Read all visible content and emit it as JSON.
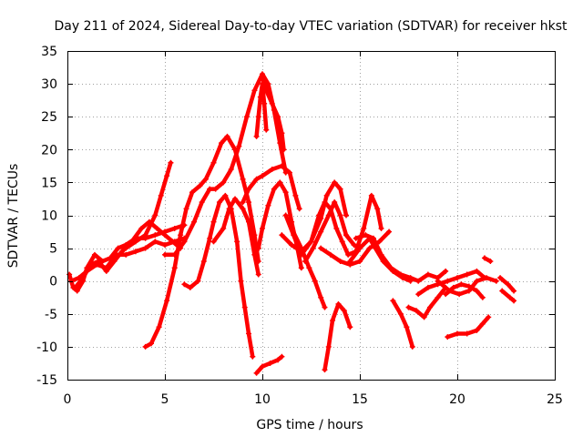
{
  "chart_data": {
    "type": "scatter",
    "title": "Day 211 of 2024, Sidereal Day-to-day VTEC variation (SDTVAR) for receiver hkst",
    "xlabel": "GPS time / hours",
    "ylabel": "SDTVAR / TECUs",
    "xlim": [
      0,
      25
    ],
    "ylim": [
      -15,
      35
    ],
    "xticks": [
      0,
      5,
      10,
      15,
      20,
      25
    ],
    "yticks": [
      -15,
      -10,
      -5,
      0,
      5,
      10,
      15,
      20,
      25,
      30,
      35
    ],
    "grid": true,
    "marker": "+",
    "color": "#ff0000",
    "series": [
      {
        "name": "trace-01",
        "points": [
          [
            0.1,
            1
          ],
          [
            0.3,
            -1
          ],
          [
            0.5,
            -1.5
          ],
          [
            0.8,
            0
          ],
          [
            1.0,
            2
          ],
          [
            1.4,
            4
          ],
          [
            1.8,
            3
          ],
          [
            2.2,
            3.5
          ],
          [
            2.6,
            5
          ],
          [
            3.0,
            5.5
          ],
          [
            3.5,
            6.5
          ],
          [
            4.0,
            6.5
          ],
          [
            4.5,
            7
          ],
          [
            5.0,
            7.5
          ],
          [
            5.5,
            8
          ],
          [
            6.0,
            8.5
          ]
        ]
      },
      {
        "name": "trace-02",
        "points": [
          [
            0.2,
            0
          ],
          [
            0.6,
            0.5
          ],
          [
            1.0,
            1.5
          ],
          [
            1.5,
            2.5
          ],
          [
            2.0,
            2
          ],
          [
            2.5,
            4
          ],
          [
            3.0,
            4
          ],
          [
            3.5,
            4.5
          ],
          [
            4.0,
            5
          ],
          [
            4.5,
            6
          ],
          [
            5.0,
            5.5
          ],
          [
            5.5,
            6
          ],
          [
            6.0,
            6.5
          ]
        ]
      },
      {
        "name": "trace-03",
        "points": [
          [
            0.4,
            -1
          ],
          [
            0.8,
            0.5
          ],
          [
            1.2,
            2.5
          ],
          [
            1.6,
            3
          ],
          [
            2.0,
            1.5
          ],
          [
            2.4,
            3
          ],
          [
            2.8,
            4.5
          ],
          [
            3.3,
            6
          ],
          [
            3.8,
            8
          ],
          [
            4.2,
            9
          ],
          [
            4.6,
            8
          ],
          [
            5.0,
            7
          ],
          [
            5.4,
            6
          ],
          [
            5.8,
            5
          ]
        ]
      },
      {
        "name": "trace-04",
        "points": [
          [
            3.0,
            5
          ],
          [
            3.5,
            6
          ],
          [
            4.0,
            7
          ],
          [
            4.5,
            10
          ],
          [
            4.8,
            13
          ],
          [
            5.1,
            16
          ],
          [
            5.3,
            18
          ]
        ]
      },
      {
        "name": "trace-05",
        "points": [
          [
            4.0,
            -10
          ],
          [
            4.3,
            -9.5
          ],
          [
            4.7,
            -7
          ],
          [
            5.1,
            -3
          ],
          [
            5.5,
            2
          ],
          [
            5.8,
            7
          ],
          [
            6.1,
            11
          ],
          [
            6.4,
            13.5
          ],
          [
            6.8,
            14.5
          ],
          [
            7.1,
            15.5
          ],
          [
            7.5,
            18
          ],
          [
            7.9,
            21
          ],
          [
            8.2,
            22
          ],
          [
            8.6,
            20
          ],
          [
            9.0,
            15.5
          ],
          [
            9.3,
            12
          ],
          [
            9.6,
            7
          ],
          [
            9.8,
            3
          ]
        ]
      },
      {
        "name": "trace-06",
        "points": [
          [
            6.0,
            -0.5
          ],
          [
            6.3,
            -1
          ],
          [
            6.7,
            0
          ],
          [
            7.0,
            3
          ],
          [
            7.3,
            6.5
          ],
          [
            7.5,
            9
          ],
          [
            7.8,
            12
          ],
          [
            8.1,
            13
          ],
          [
            8.4,
            11
          ],
          [
            8.7,
            6
          ],
          [
            8.9,
            0
          ],
          [
            9.1,
            -4
          ],
          [
            9.3,
            -8
          ],
          [
            9.5,
            -11.5
          ]
        ]
      },
      {
        "name": "trace-07",
        "points": [
          [
            5.0,
            4
          ],
          [
            5.5,
            4
          ],
          [
            6.0,
            6
          ],
          [
            6.5,
            9
          ],
          [
            6.9,
            12
          ],
          [
            7.3,
            14
          ],
          [
            7.6,
            14
          ],
          [
            8.0,
            15
          ],
          [
            8.4,
            17
          ],
          [
            8.8,
            20.5
          ],
          [
            9.2,
            25
          ],
          [
            9.6,
            29
          ],
          [
            10.0,
            31.5
          ],
          [
            10.3,
            30
          ],
          [
            10.6,
            26
          ],
          [
            10.9,
            21
          ],
          [
            11.2,
            16.5
          ]
        ]
      },
      {
        "name": "trace-08",
        "points": [
          [
            9.7,
            22
          ],
          [
            9.8,
            25
          ],
          [
            9.9,
            28
          ],
          [
            10.0,
            30
          ],
          [
            10.1,
            27
          ],
          [
            10.2,
            23
          ]
        ]
      },
      {
        "name": "trace-09",
        "points": [
          [
            10.0,
            31
          ],
          [
            10.2,
            29
          ],
          [
            10.5,
            27
          ],
          [
            10.8,
            25
          ],
          [
            11.0,
            22.5
          ],
          [
            11.1,
            20
          ]
        ]
      },
      {
        "name": "trace-10",
        "points": [
          [
            9.0,
            12
          ],
          [
            9.3,
            14
          ],
          [
            9.7,
            15.5
          ],
          [
            10.0,
            16
          ],
          [
            10.5,
            17
          ],
          [
            11.0,
            17.5
          ],
          [
            11.4,
            16.5
          ],
          [
            11.7,
            13
          ],
          [
            11.9,
            11
          ]
        ]
      },
      {
        "name": "trace-11",
        "points": [
          [
            7.5,
            6
          ],
          [
            8.0,
            8
          ],
          [
            8.3,
            11
          ],
          [
            8.6,
            12.5
          ],
          [
            9.0,
            11
          ],
          [
            9.3,
            9
          ],
          [
            9.6,
            4
          ],
          [
            9.8,
            1
          ]
        ]
      },
      {
        "name": "trace-12",
        "points": [
          [
            9.6,
            4
          ],
          [
            9.8,
            5
          ],
          [
            10.0,
            8
          ],
          [
            10.3,
            11.5
          ],
          [
            10.6,
            14
          ],
          [
            10.9,
            15
          ],
          [
            11.2,
            13.5
          ],
          [
            11.5,
            9
          ],
          [
            11.8,
            5
          ],
          [
            12.0,
            2
          ]
        ]
      },
      {
        "name": "trace-13",
        "points": [
          [
            9.7,
            -14
          ],
          [
            10.0,
            -13
          ],
          [
            10.4,
            -12.5
          ],
          [
            10.8,
            -12
          ],
          [
            11.0,
            -11.5
          ]
        ]
      },
      {
        "name": "trace-14",
        "points": [
          [
            11.0,
            7
          ],
          [
            11.5,
            5.5
          ],
          [
            12.0,
            4.5
          ],
          [
            12.5,
            6
          ],
          [
            13.0,
            9.5
          ],
          [
            13.3,
            13
          ],
          [
            13.7,
            15
          ],
          [
            14.0,
            14
          ],
          [
            14.3,
            10
          ]
        ]
      },
      {
        "name": "trace-15",
        "points": [
          [
            11.2,
            10
          ],
          [
            11.6,
            7
          ],
          [
            12.0,
            4
          ],
          [
            12.5,
            6
          ],
          [
            12.9,
            10
          ],
          [
            13.2,
            12
          ],
          [
            13.5,
            11
          ],
          [
            13.8,
            8
          ],
          [
            14.1,
            6
          ],
          [
            14.4,
            4
          ],
          [
            14.8,
            4.5
          ],
          [
            15.2,
            8
          ],
          [
            15.6,
            13
          ],
          [
            15.9,
            11
          ],
          [
            16.1,
            8
          ]
        ]
      },
      {
        "name": "trace-16",
        "points": [
          [
            11.5,
            8
          ],
          [
            12.0,
            5
          ],
          [
            12.4,
            2
          ],
          [
            12.7,
            0
          ],
          [
            13.0,
            -2.5
          ],
          [
            13.2,
            -4
          ]
        ]
      },
      {
        "name": "trace-17",
        "points": [
          [
            12.2,
            3
          ],
          [
            12.6,
            5
          ],
          [
            13.0,
            7.5
          ],
          [
            13.4,
            10
          ],
          [
            13.7,
            12
          ],
          [
            14.0,
            10
          ],
          [
            14.3,
            7
          ],
          [
            14.7,
            5.5
          ],
          [
            15.0,
            5
          ]
        ]
      },
      {
        "name": "trace-18",
        "points": [
          [
            13.0,
            5
          ],
          [
            13.5,
            4
          ],
          [
            14.0,
            3
          ],
          [
            14.5,
            2.5
          ],
          [
            15.0,
            3
          ],
          [
            15.5,
            5
          ],
          [
            16.0,
            6
          ],
          [
            16.5,
            7.5
          ]
        ]
      },
      {
        "name": "trace-19",
        "points": [
          [
            13.2,
            -13.5
          ],
          [
            13.4,
            -10
          ],
          [
            13.6,
            -6
          ],
          [
            13.9,
            -3.5
          ],
          [
            14.2,
            -4.5
          ],
          [
            14.5,
            -7
          ]
        ]
      },
      {
        "name": "trace-20",
        "points": [
          [
            14.8,
            6.5
          ],
          [
            15.3,
            7
          ],
          [
            15.7,
            6.5
          ],
          [
            16.1,
            4
          ],
          [
            16.6,
            2
          ],
          [
            17.1,
            1
          ],
          [
            17.6,
            0.5
          ],
          [
            18.0,
            0
          ],
          [
            18.5,
            1
          ],
          [
            19.0,
            0.5
          ],
          [
            19.4,
            1.5
          ]
        ]
      },
      {
        "name": "trace-21",
        "points": [
          [
            14.5,
            3
          ],
          [
            15.0,
            5
          ],
          [
            15.5,
            6.5
          ],
          [
            15.8,
            5
          ],
          [
            16.2,
            3
          ],
          [
            16.7,
            1.5
          ],
          [
            17.2,
            0.5
          ],
          [
            17.6,
            0
          ]
        ]
      },
      {
        "name": "trace-22",
        "points": [
          [
            16.7,
            -3
          ],
          [
            17.1,
            -5
          ],
          [
            17.4,
            -7
          ],
          [
            17.7,
            -10
          ]
        ]
      },
      {
        "name": "trace-23",
        "points": [
          [
            17.5,
            -4
          ],
          [
            17.9,
            -4.5
          ],
          [
            18.3,
            -5.5
          ],
          [
            18.6,
            -4
          ],
          [
            19.0,
            -2.5
          ],
          [
            19.4,
            -1
          ]
        ]
      },
      {
        "name": "trace-24",
        "points": [
          [
            18.0,
            -2
          ],
          [
            18.5,
            -1
          ],
          [
            19.0,
            -0.5
          ],
          [
            19.5,
            0
          ],
          [
            20.0,
            0.5
          ],
          [
            20.5,
            1
          ],
          [
            21.0,
            1.5
          ],
          [
            21.4,
            0.5
          ]
        ]
      },
      {
        "name": "trace-25",
        "points": [
          [
            19.4,
            -2
          ],
          [
            19.8,
            -1
          ],
          [
            20.2,
            -0.5
          ],
          [
            20.6,
            -0.8
          ],
          [
            21.0,
            -1.5
          ],
          [
            21.3,
            -2.5
          ]
        ]
      },
      {
        "name": "trace-26",
        "points": [
          [
            19.0,
            0
          ],
          [
            19.6,
            -1.5
          ],
          [
            20.1,
            -2
          ],
          [
            20.6,
            -1.5
          ],
          [
            21.0,
            0
          ],
          [
            21.5,
            0.5
          ],
          [
            22.0,
            0
          ]
        ]
      },
      {
        "name": "trace-27",
        "points": [
          [
            19.5,
            -8.5
          ],
          [
            20.0,
            -8
          ],
          [
            20.5,
            -8
          ],
          [
            21.0,
            -7.5
          ],
          [
            21.3,
            -6.5
          ],
          [
            21.6,
            -5.5
          ]
        ]
      },
      {
        "name": "trace-28",
        "points": [
          [
            21.4,
            3.5
          ],
          [
            21.7,
            3
          ]
        ]
      },
      {
        "name": "trace-29",
        "points": [
          [
            22.2,
            0.5
          ],
          [
            22.6,
            -0.5
          ],
          [
            22.9,
            -1.5
          ]
        ]
      },
      {
        "name": "trace-30",
        "points": [
          [
            22.3,
            -1.5
          ],
          [
            22.7,
            -2.5
          ],
          [
            22.9,
            -3
          ]
        ]
      }
    ]
  }
}
